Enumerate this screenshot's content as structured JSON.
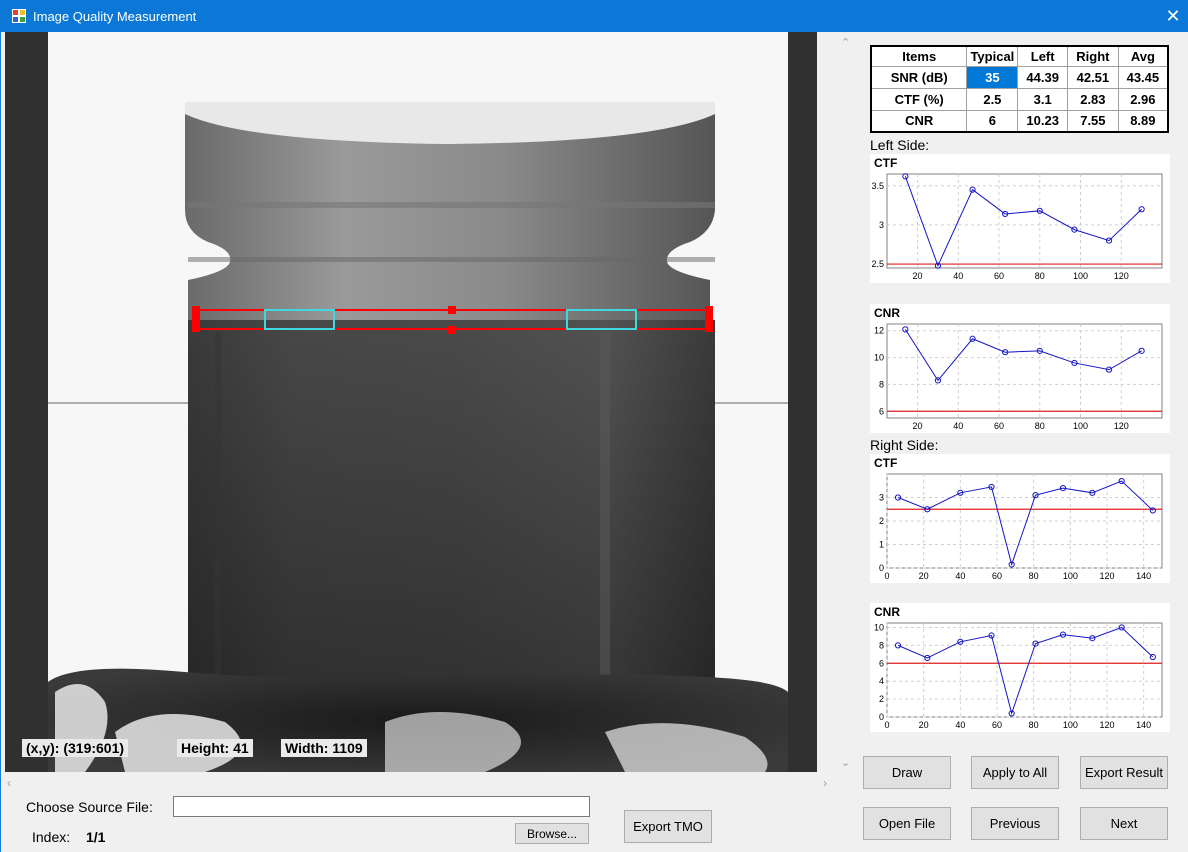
{
  "window": {
    "title": "Image Quality Measurement",
    "close_glyph": "✕"
  },
  "viewer": {
    "coords_label": "(x,y):  (319:601)",
    "height_label": "Height:  41",
    "width_label": "Width:  1109"
  },
  "controls": {
    "source_label": "Choose Source File:",
    "source_value": "",
    "index_label": "Index:",
    "index_value": "1/1",
    "browse_label": "Browse...",
    "export_tmo_label": "Export TMO",
    "draw_label": "Draw",
    "apply_all_label": "Apply to All",
    "export_result_label": "Export Result",
    "open_file_label": "Open File",
    "previous_label": "Previous",
    "next_label": "Next"
  },
  "results": {
    "headers": [
      "Items",
      "Typical",
      "Left",
      "Right",
      "Avg"
    ],
    "rows": [
      [
        "SNR (dB)",
        "35",
        "44.39",
        "42.51",
        "43.45"
      ],
      [
        "CTF (%)",
        "2.5",
        "3.1",
        "2.83",
        "2.96"
      ],
      [
        "CNR",
        "6",
        "10.23",
        "7.55",
        "8.89"
      ]
    ]
  },
  "left_side_label": "Left Side:",
  "right_side_label": "Right Side:",
  "colors": {
    "accent": "#0078d7",
    "titlebar": "#0b78d7",
    "series": "#1515c8",
    "threshold": "#e02020",
    "roi": "#ff0000",
    "roi_inner": "#3fd8e0"
  },
  "chart_data": [
    {
      "id": "left_ctf",
      "type": "line",
      "title": "CTF",
      "x": [
        14,
        30,
        47,
        63,
        80,
        97,
        114,
        130
      ],
      "values": [
        3.62,
        2.48,
        3.45,
        3.14,
        3.18,
        2.94,
        2.8,
        3.2
      ],
      "threshold": 2.5,
      "xlim": [
        5,
        140
      ],
      "ylim": [
        2.45,
        3.65
      ],
      "xticks": [
        20,
        40,
        60,
        80,
        100,
        120
      ],
      "yticks": [
        2.5,
        3,
        3.5
      ],
      "ytick_labels": [
        "2.5",
        "3",
        "3.5"
      ],
      "grid": true
    },
    {
      "id": "left_cnr",
      "type": "line",
      "title": "CNR",
      "x": [
        14,
        30,
        47,
        63,
        80,
        97,
        114,
        130
      ],
      "values": [
        12.1,
        8.3,
        11.4,
        10.4,
        10.5,
        9.6,
        9.1,
        10.5
      ],
      "threshold": 6,
      "xlim": [
        5,
        140
      ],
      "ylim": [
        5.5,
        12.5
      ],
      "xticks": [
        20,
        40,
        60,
        80,
        100,
        120
      ],
      "yticks": [
        6,
        8,
        10,
        12
      ],
      "ytick_labels": [
        "6",
        "8",
        "10",
        "12"
      ],
      "grid": true
    },
    {
      "id": "right_ctf",
      "type": "line",
      "title": "CTF",
      "x": [
        6,
        22,
        40,
        57,
        68,
        81,
        96,
        112,
        128,
        145
      ],
      "values": [
        3.0,
        2.5,
        3.2,
        3.45,
        0.15,
        3.1,
        3.4,
        3.2,
        3.7,
        2.45
      ],
      "threshold": 2.5,
      "xlim": [
        0,
        150
      ],
      "ylim": [
        0,
        4
      ],
      "xticks": [
        0,
        20,
        40,
        60,
        80,
        100,
        120,
        140
      ],
      "yticks": [
        0,
        1,
        2,
        3
      ],
      "ytick_labels": [
        "0",
        "1",
        "2",
        "3"
      ],
      "grid": true
    },
    {
      "id": "right_cnr",
      "type": "line",
      "title": "CNR",
      "x": [
        6,
        22,
        40,
        57,
        68,
        81,
        96,
        112,
        128,
        145
      ],
      "values": [
        8,
        6.6,
        8.4,
        9.1,
        0.4,
        8.2,
        9.2,
        8.8,
        10,
        6.7
      ],
      "threshold": 6,
      "xlim": [
        0,
        150
      ],
      "ylim": [
        0,
        10.5
      ],
      "xticks": [
        0,
        20,
        40,
        60,
        80,
        100,
        120,
        140
      ],
      "yticks": [
        0,
        2,
        4,
        6,
        8,
        10
      ],
      "ytick_labels": [
        "0",
        "2",
        "4",
        "6",
        "8",
        "10"
      ],
      "grid": true
    }
  ]
}
